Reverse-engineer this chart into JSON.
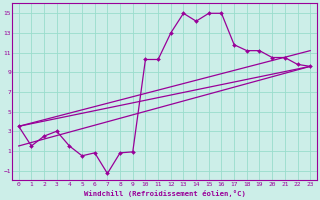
{
  "xlabel": "Windchill (Refroidissement éolien,°C)",
  "bg_color": "#cceee8",
  "grid_color": "#99ddcc",
  "line_color": "#990099",
  "xlim": [
    -0.5,
    23.5
  ],
  "ylim": [
    -2.0,
    16.0
  ],
  "xticks": [
    0,
    1,
    2,
    3,
    4,
    5,
    6,
    7,
    8,
    9,
    10,
    11,
    12,
    13,
    14,
    15,
    16,
    17,
    18,
    19,
    20,
    21,
    22,
    23
  ],
  "yticks": [
    -1,
    1,
    3,
    5,
    7,
    9,
    11,
    13,
    15
  ],
  "curve1_x": [
    0,
    1,
    2,
    3,
    4,
    5,
    6,
    7,
    8,
    9,
    10,
    11,
    12,
    13,
    14,
    15,
    16,
    17,
    18,
    19,
    20,
    21,
    22,
    23
  ],
  "curve1_y": [
    3.5,
    1.5,
    2.5,
    3.0,
    1.5,
    0.5,
    0.8,
    -1.3,
    0.8,
    0.9,
    10.3,
    10.3,
    13.0,
    15.0,
    14.2,
    15.0,
    15.0,
    11.8,
    11.2,
    11.2,
    10.5,
    10.5,
    9.8,
    9.6
  ],
  "line1_x": [
    0,
    23
  ],
  "line1_y": [
    1.5,
    9.6
  ],
  "line2_x": [
    0,
    23
  ],
  "line2_y": [
    3.5,
    9.6
  ],
  "line3_x": [
    0,
    23
  ],
  "line3_y": [
    3.5,
    11.2
  ]
}
